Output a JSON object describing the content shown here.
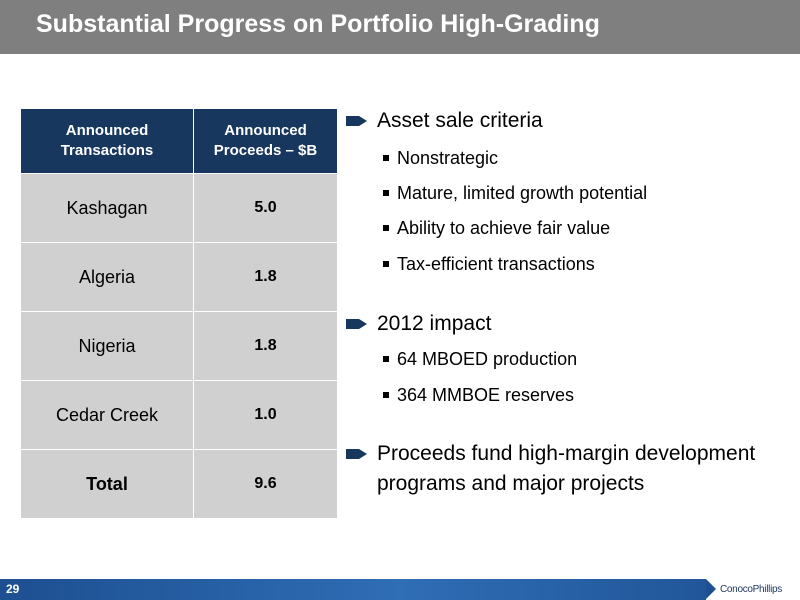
{
  "slide": {
    "title": "Substantial Progress on Portfolio High-Grading",
    "page_number": "29",
    "logo_text": "ConocoPhillips"
  },
  "table": {
    "header_col1_line1": "Announced",
    "header_col1_line2": "Transactions",
    "header_col2_line1": "Announced",
    "header_col2_line2": "Proceeds – $B",
    "rows": [
      {
        "name": "Kashagan",
        "value": "5.0"
      },
      {
        "name": "Algeria",
        "value": "1.8"
      },
      {
        "name": "Nigeria",
        "value": "1.8"
      },
      {
        "name": "Cedar Creek",
        "value": "1.0"
      }
    ],
    "total": {
      "name": "Total",
      "value": "9.6"
    }
  },
  "bullets": [
    {
      "text": "Asset sale criteria",
      "sub": [
        "Nonstrategic",
        "Mature, limited growth potential",
        "Ability to achieve fair value",
        "Tax-efficient transactions"
      ]
    },
    {
      "text": "2012 impact",
      "sub": [
        "64 MBOED production",
        "364 MMBOE reserves"
      ]
    },
    {
      "text_line1": "Proceeds fund high-margin development",
      "text_line2": "programs and major projects"
    }
  ],
  "colors": {
    "title_bar": "#7f7f7f",
    "table_header": "#17375e",
    "table_cell": "#d0d0d0",
    "footer_bar": "#1d4f91",
    "bullet_arrow": "#17375e"
  },
  "icons": {
    "bullet": "right-arrow-icon",
    "sub_bullet": "square-bullet-icon"
  }
}
